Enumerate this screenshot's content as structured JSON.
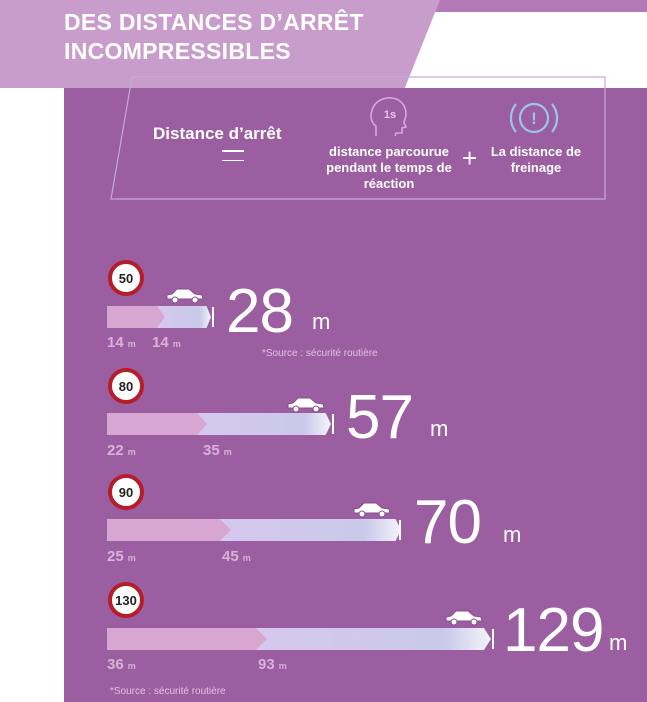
{
  "title": {
    "line1": "DES DISTANCES D’ARRÊT",
    "line2": "INCOMPRESSIBLES"
  },
  "formula": {
    "label": "Distance d’arrêt",
    "reaction_badge": "1s",
    "reaction_text": "distance parcourue pendant le temps de réaction",
    "plus": "+",
    "braking_text": "La distance de freinage",
    "braking_icon": "!"
  },
  "rows": [
    {
      "speed": "50",
      "reaction": "14",
      "braking": "14",
      "total": "28",
      "unit": "m"
    },
    {
      "speed": "80",
      "reaction": "22",
      "braking": "35",
      "total": "57",
      "unit": "m"
    },
    {
      "speed": "90",
      "reaction": "25",
      "braking": "45",
      "total": "70",
      "unit": "m"
    },
    {
      "speed": "130",
      "reaction": "36",
      "braking": "93",
      "total": "129",
      "unit": "m"
    }
  ],
  "unit_small": "m",
  "source_top": "*Source : sécurité routière",
  "source_bottom": "*Source : sécurité routière",
  "colors": {
    "panel": "#9b5ea0",
    "banner": "#c99dcb",
    "reaction_bar": "#d7a6d1",
    "braking_bar": "#d6c8ee",
    "sign_border": "#b51d2a"
  }
}
